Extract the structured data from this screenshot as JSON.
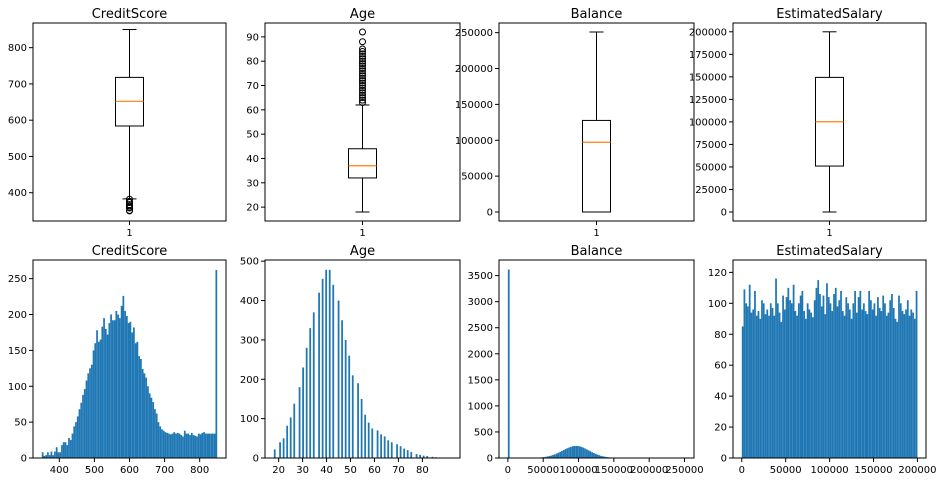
{
  "colors": {
    "bar": "#1f77b4",
    "median": "#ff7f0e",
    "box": "#000000"
  },
  "chart_data": [
    {
      "type": "box",
      "title": "CreditScore",
      "ylim": [
        322,
        868
      ],
      "yticks": [
        400,
        500,
        600,
        700,
        800
      ],
      "xtick_labels": [
        "1"
      ],
      "stats": {
        "whisker_low": 383,
        "q1": 584,
        "median": 652,
        "q3": 718,
        "whisker_high": 850
      },
      "fliers": [
        382,
        376,
        373,
        367,
        363,
        359,
        358,
        351,
        350
      ]
    },
    {
      "type": "box",
      "title": "Age",
      "ylim": [
        14.3,
        95.7
      ],
      "yticks": [
        20,
        30,
        40,
        50,
        60,
        70,
        80,
        90
      ],
      "xtick_labels": [
        "1"
      ],
      "stats": {
        "whisker_low": 18,
        "q1": 32,
        "median": 37,
        "q3": 44,
        "whisker_high": 62
      },
      "fliers": [
        63,
        64,
        65,
        66,
        67,
        68,
        69,
        70,
        71,
        72,
        73,
        74,
        75,
        76,
        77,
        78,
        79,
        80,
        81,
        82,
        83,
        84,
        85,
        88,
        92
      ]
    },
    {
      "type": "box",
      "title": "Balance",
      "ylim": [
        -12545,
        263443
      ],
      "yticks": [
        0,
        50000,
        100000,
        150000,
        200000,
        250000
      ],
      "xtick_labels": [
        "1"
      ],
      "stats": {
        "whisker_low": 0,
        "q1": 0,
        "median": 97199,
        "q3": 127644,
        "whisker_high": 250898
      },
      "fliers": []
    },
    {
      "type": "box",
      "title": "EstimatedSalary",
      "ylim": [
        -9989,
        209760
      ],
      "yticks": [
        0,
        25000,
        50000,
        75000,
        100000,
        125000,
        150000,
        175000,
        200000
      ],
      "xtick_labels": [
        "1"
      ],
      "stats": {
        "whisker_low": 12,
        "q1": 51002,
        "median": 100194,
        "q3": 149388,
        "whisker_high": 199992
      },
      "fliers": []
    },
    {
      "type": "bar",
      "title": "CreditScore",
      "xlim": [
        325,
        875
      ],
      "ylim": [
        0,
        276
      ],
      "xticks": [
        400,
        500,
        600,
        700,
        800
      ],
      "yticks": [
        0,
        50,
        100,
        150,
        200,
        250
      ],
      "bin_start": 350,
      "bin_width": 5,
      "values": [
        8,
        3,
        4,
        8,
        4,
        9,
        4,
        9,
        15,
        8,
        8,
        18,
        22,
        22,
        18,
        28,
        25,
        34,
        44,
        50,
        58,
        68,
        77,
        88,
        96,
        108,
        118,
        125,
        130,
        150,
        160,
        178,
        162,
        165,
        183,
        195,
        180,
        172,
        188,
        200,
        192,
        192,
        205,
        200,
        195,
        212,
        226,
        205,
        198,
        188,
        190,
        175,
        182,
        160,
        162,
        142,
        138,
        124,
        118,
        112,
        100,
        90,
        84,
        78,
        68,
        62,
        50,
        44,
        40,
        38,
        36,
        35,
        34,
        33,
        34,
        36,
        34,
        35,
        34,
        32,
        30,
        38,
        34,
        34,
        32,
        35,
        32,
        31,
        30,
        34,
        33,
        35,
        36,
        34,
        34,
        34,
        34,
        34,
        34,
        262
      ]
    },
    {
      "type": "bar",
      "title": "Age",
      "xlim": [
        14.3,
        95.7
      ],
      "ylim": [
        0,
        503
      ],
      "xticks": [
        20,
        30,
        40,
        50,
        60,
        70,
        80
      ],
      "yticks": [
        0,
        100,
        200,
        300,
        400,
        500
      ],
      "bin_start": 18,
      "bin_width": 0.74,
      "values": [
        22,
        0,
        0,
        40,
        0,
        50,
        0,
        82,
        0,
        103,
        0,
        138,
        0,
        0,
        180,
        0,
        230,
        0,
        280,
        0,
        330,
        0,
        370,
        0,
        0,
        420,
        0,
        455,
        0,
        478,
        0,
        478,
        0,
        440,
        0,
        0,
        400,
        0,
        350,
        0,
        300,
        0,
        260,
        0,
        210,
        0,
        0,
        190,
        0,
        150,
        0,
        110,
        0,
        90,
        0,
        75,
        0,
        0,
        70,
        0,
        60,
        0,
        55,
        0,
        45,
        0,
        40,
        0,
        0,
        35,
        0,
        30,
        0,
        24,
        0,
        20,
        0,
        15,
        0,
        0,
        10,
        0,
        8,
        0,
        6,
        0,
        5,
        0,
        0,
        3,
        0,
        2,
        0,
        1,
        0,
        1,
        0,
        1,
        0,
        1
      ]
    },
    {
      "type": "bar",
      "title": "Balance",
      "xlim": [
        -12545,
        263443
      ],
      "ylim": [
        0,
        3800
      ],
      "xticks": [
        0,
        50000,
        100000,
        150000,
        200000,
        250000
      ],
      "yticks": [
        0,
        500,
        1000,
        1500,
        2000,
        2500,
        3000,
        3500
      ],
      "bin_start": 0,
      "bin_width": 2509,
      "values": [
        3617,
        0,
        0,
        0,
        0,
        0,
        0,
        0,
        0,
        0,
        0,
        1,
        1,
        2,
        3,
        4,
        6,
        8,
        10,
        14,
        18,
        24,
        30,
        38,
        46,
        58,
        70,
        84,
        100,
        118,
        136,
        152,
        170,
        186,
        200,
        214,
        224,
        230,
        232,
        230,
        224,
        214,
        200,
        184,
        166,
        148,
        130,
        112,
        96,
        80,
        66,
        54,
        42,
        34,
        26,
        20,
        15,
        11,
        8,
        6,
        4,
        3,
        2,
        2,
        1,
        1,
        1,
        0,
        0,
        0,
        0,
        0,
        0,
        0,
        0,
        0,
        0,
        0,
        0,
        0,
        0,
        0,
        0,
        0,
        0,
        0,
        0,
        0,
        0,
        0,
        0,
        0,
        0,
        0,
        0,
        0,
        0,
        0,
        0,
        1
      ]
    },
    {
      "type": "bar",
      "title": "EstimatedSalary",
      "xlim": [
        -9989,
        209760
      ],
      "ylim": [
        0,
        128
      ],
      "xticks": [
        0,
        50000,
        100000,
        150000,
        200000
      ],
      "yticks": [
        0,
        20,
        40,
        60,
        80,
        100,
        120
      ],
      "bin_start": 12,
      "bin_width": 2000,
      "values": [
        85,
        109,
        100,
        98,
        112,
        94,
        96,
        108,
        92,
        95,
        90,
        102,
        100,
        93,
        96,
        92,
        100,
        97,
        92,
        116,
        100,
        94,
        88,
        105,
        96,
        104,
        110,
        102,
        100,
        112,
        95,
        92,
        100,
        105,
        108,
        95,
        90,
        100,
        96,
        94,
        91,
        102,
        110,
        115,
        106,
        98,
        105,
        93,
        113,
        104,
        100,
        95,
        106,
        110,
        98,
        102,
        108,
        95,
        92,
        104,
        100,
        96,
        90,
        100,
        108,
        94,
        104,
        108,
        96,
        100,
        95,
        93,
        108,
        102,
        96,
        100,
        92,
        104,
        97,
        95,
        105,
        100,
        92,
        94,
        102,
        106,
        97,
        90,
        88,
        105,
        100,
        95,
        93,
        96,
        102,
        92,
        96,
        94,
        90,
        108
      ]
    }
  ]
}
